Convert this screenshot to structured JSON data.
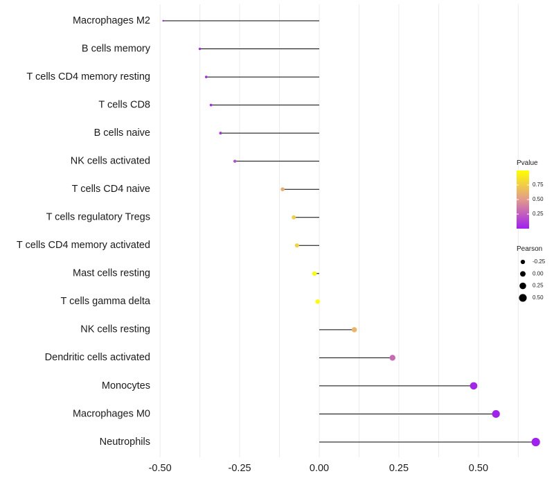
{
  "chart_data": {
    "type": "lollipop",
    "title": "",
    "xlabel": "",
    "ylabel": "",
    "xlim": [
      -0.5,
      0.7
    ],
    "x_ticks": [
      -0.5,
      -0.25,
      0.0,
      0.25,
      0.5
    ],
    "x_tick_labels": [
      "-0.50",
      "-0.25",
      "0.00",
      "0.25",
      "0.50"
    ],
    "categories": [
      "Macrophages M2",
      "B cells memory",
      "T cells CD4 memory resting",
      "T cells CD8",
      "B cells naive",
      "NK cells activated",
      "T cells CD4 naive",
      "T cells regulatory  Tregs ",
      "T cells CD4 memory activated",
      "Mast cells resting",
      "T cells gamma delta",
      "NK cells resting",
      "Dendritic cells activated",
      "Monocytes",
      "Macrophages M0",
      "Neutrophils"
    ],
    "pearson": [
      -0.49,
      -0.375,
      -0.355,
      -0.34,
      -0.31,
      -0.265,
      -0.115,
      -0.08,
      -0.07,
      -0.015,
      -0.005,
      0.11,
      0.23,
      0.485,
      0.555,
      0.68
    ],
    "pvalue": [
      0.005,
      0.03,
      0.04,
      0.05,
      0.07,
      0.18,
      0.6,
      0.75,
      0.78,
      0.98,
      0.99,
      0.64,
      0.3,
      0.02,
      0.008,
      0.001
    ],
    "color_legend": {
      "title": "Pvalue",
      "ticks": [
        0.25,
        0.5,
        0.75
      ],
      "tick_labels": [
        "0.25",
        "0.50",
        "0.75"
      ],
      "range": [
        0.0,
        1.0
      ],
      "low_color": "#a020f0",
      "mid_color": "#e29a8c",
      "high_color": "#ffff00"
    },
    "size_legend": {
      "title": "Pearson",
      "values": [
        -0.25,
        0.0,
        0.25,
        0.5
      ],
      "labels": [
        "-0.25",
        "0.00",
        "0.25",
        "0.50"
      ]
    }
  }
}
